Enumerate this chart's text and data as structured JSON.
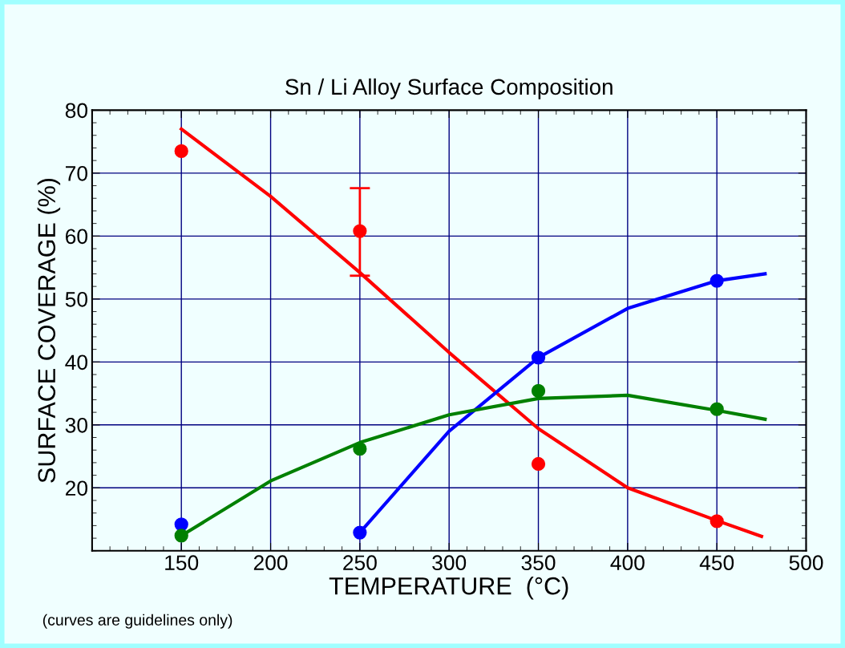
{
  "chart_data": {
    "type": "scatter",
    "title": "Sn / Li Alloy Surface Composition",
    "xlabel": "TEMPERATURE  (°C)",
    "ylabel": "SURFACE COVERAGE (%)",
    "annotations": [
      "(curves are guidelines only)"
    ],
    "xlim": [
      100,
      500
    ],
    "ylim": [
      10,
      80
    ],
    "xticks": [
      150,
      200,
      250,
      300,
      350,
      400,
      450,
      500
    ],
    "yticks": [
      20,
      30,
      40,
      50,
      60,
      70,
      80
    ],
    "grid": true,
    "marker": "circle",
    "series": [
      {
        "color": "#ff0000",
        "x": [
          150,
          250,
          350,
          450
        ],
        "values": [
          73.5,
          60.8,
          23.8,
          14.7
        ],
        "errors": [
          null,
          [
            53.7,
            67.6
          ],
          null,
          null
        ]
      },
      {
        "color": "#0000ff",
        "x": [
          150,
          250,
          350,
          450
        ],
        "values": [
          14.2,
          12.9,
          40.7,
          52.9
        ]
      },
      {
        "color": "#008000",
        "x": [
          150,
          250,
          350,
          450
        ],
        "values": [
          12.4,
          26.2,
          35.4,
          32.5
        ]
      },
      {
        "type": "line",
        "color": "#ff0000",
        "marker": "none",
        "x": [
          150,
          200,
          250,
          300,
          350,
          400,
          450,
          475
        ],
        "values": [
          77.0,
          66.3,
          54.2,
          41.5,
          29.4,
          20.0,
          14.8,
          12.3
        ]
      },
      {
        "type": "line",
        "color": "#0000ff",
        "marker": "none",
        "x": [
          250,
          300,
          350,
          400,
          450,
          477
        ],
        "values": [
          12.9,
          29.0,
          40.7,
          48.5,
          52.9,
          54.0
        ]
      },
      {
        "type": "line",
        "color": "#008000",
        "marker": "none",
        "x": [
          150,
          200,
          250,
          300,
          350,
          400,
          450,
          477
        ],
        "values": [
          12.4,
          21.1,
          27.2,
          31.6,
          34.2,
          34.7,
          32.3,
          30.9
        ]
      }
    ]
  }
}
